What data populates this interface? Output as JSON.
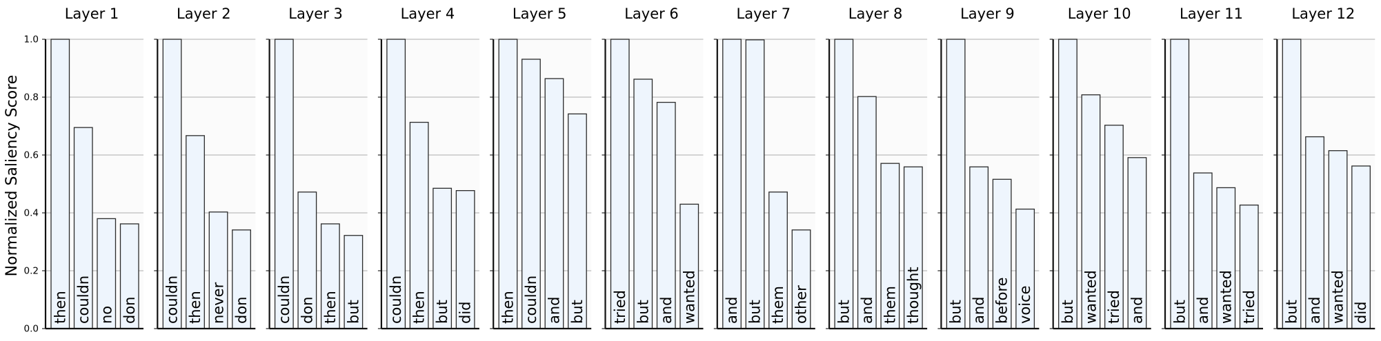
{
  "chart_data": {
    "type": "bar",
    "ylabel": "Normalized Saliency Score",
    "ylim": [
      0,
      1
    ],
    "yticks": [
      "0.0",
      "0.2",
      "0.4",
      "0.6",
      "0.8",
      "1.0"
    ],
    "grid": "horizontal",
    "bar_color": "#eef5fd",
    "bar_edge_color": "#2b2b2b",
    "grid_color": "#bdbdbd",
    "panel_background": "#fbfbfb",
    "panels": [
      {
        "title": "Layer 1",
        "categories": [
          "then",
          "couldn",
          "no",
          "don"
        ],
        "values": [
          1.0,
          0.695,
          0.38,
          0.362
        ]
      },
      {
        "title": "Layer 2",
        "categories": [
          "couldn",
          "then",
          "never",
          "don"
        ],
        "values": [
          1.0,
          0.667,
          0.403,
          0.341
        ]
      },
      {
        "title": "Layer 3",
        "categories": [
          "couldn",
          "don",
          "then",
          "but"
        ],
        "values": [
          1.0,
          0.472,
          0.362,
          0.322
        ]
      },
      {
        "title": "Layer 4",
        "categories": [
          "couldn",
          "then",
          "but",
          "did"
        ],
        "values": [
          1.0,
          0.713,
          0.485,
          0.477
        ]
      },
      {
        "title": "Layer 5",
        "categories": [
          "then",
          "couldn",
          "and",
          "but"
        ],
        "values": [
          1.0,
          0.931,
          0.864,
          0.742
        ]
      },
      {
        "title": "Layer 6",
        "categories": [
          "tried",
          "but",
          "and",
          "wanted"
        ],
        "values": [
          1.0,
          0.862,
          0.782,
          0.43
        ]
      },
      {
        "title": "Layer 7",
        "categories": [
          "and",
          "but",
          "them",
          "other"
        ],
        "values": [
          1.0,
          0.998,
          0.472,
          0.341
        ]
      },
      {
        "title": "Layer 8",
        "categories": [
          "but",
          "and",
          "them",
          "thought"
        ],
        "values": [
          1.0,
          0.802,
          0.571,
          0.559
        ]
      },
      {
        "title": "Layer 9",
        "categories": [
          "but",
          "and",
          "before",
          "voice"
        ],
        "values": [
          1.0,
          0.559,
          0.516,
          0.413
        ]
      },
      {
        "title": "Layer 10",
        "categories": [
          "but",
          "wanted",
          "tried",
          "and"
        ],
        "values": [
          1.0,
          0.808,
          0.703,
          0.591
        ]
      },
      {
        "title": "Layer 11",
        "categories": [
          "but",
          "and",
          "wanted",
          "tried"
        ],
        "values": [
          1.0,
          0.538,
          0.487,
          0.427
        ]
      },
      {
        "title": "Layer 12",
        "categories": [
          "but",
          "and",
          "wanted",
          "did"
        ],
        "values": [
          1.0,
          0.663,
          0.615,
          0.562
        ]
      }
    ]
  }
}
